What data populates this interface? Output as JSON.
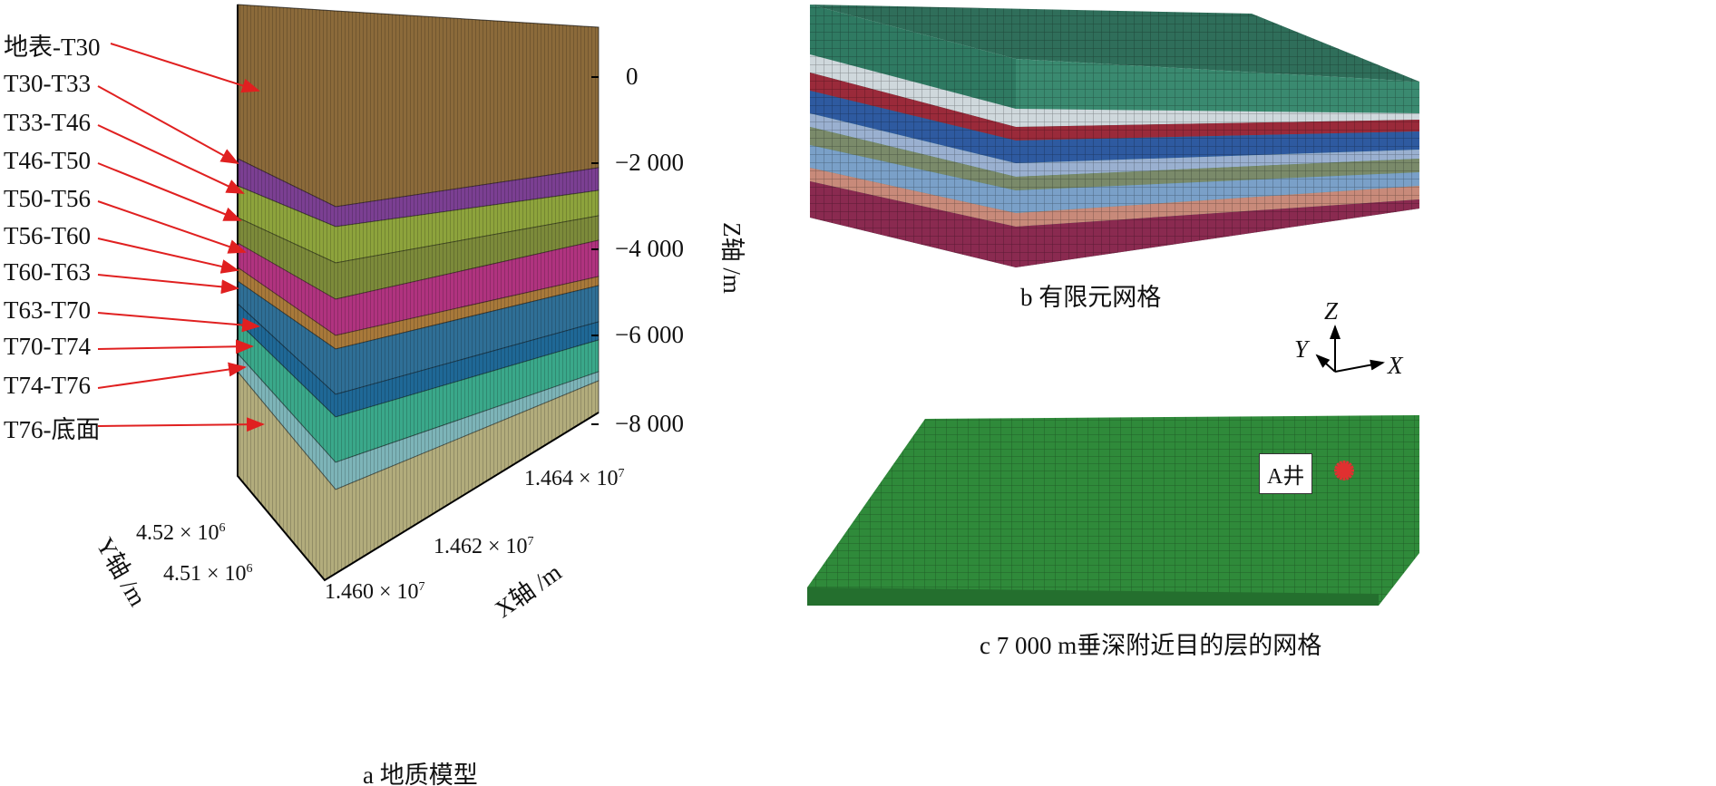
{
  "panel_a": {
    "caption": "a  地质模型",
    "layers": [
      {
        "label": "地表-T30",
        "color": "#8b6a3a"
      },
      {
        "label": "T30-T33",
        "color": "#7b3f92"
      },
      {
        "label": "T33-T46",
        "color": "#8da33c"
      },
      {
        "label": "T46-T50",
        "color": "#7c8a3a"
      },
      {
        "label": "T50-T56",
        "color": "#b0337f"
      },
      {
        "label": "T56-T60",
        "color": "#a8793a"
      },
      {
        "label": "T60-T63",
        "color": "#2f6f96"
      },
      {
        "label": "T63-T70",
        "color": "#1f6896"
      },
      {
        "label": "T70-T74",
        "color": "#3aa88a"
      },
      {
        "label": "T74-T76",
        "color": "#7db4b8"
      },
      {
        "label": "T76-底面",
        "color": "#b2ac7c"
      }
    ],
    "z_axis": {
      "label": "Z轴 /m",
      "ticks": [
        "0",
        "−2 000",
        "−4 000",
        "−6 000",
        "−8 000"
      ]
    },
    "y_axis": {
      "label": "Y轴 /m",
      "ticks": [
        {
          "base": "4.52 × 10",
          "exp": "6"
        },
        {
          "base": "4.51 × 10",
          "exp": "6"
        }
      ]
    },
    "x_axis": {
      "label": "X轴 /m",
      "ticks": [
        {
          "base": "1.460 × 10",
          "exp": "7"
        },
        {
          "base": "1.462 × 10",
          "exp": "7"
        },
        {
          "base": "1.464 × 10",
          "exp": "7"
        }
      ]
    },
    "arrow_color": "#e02020"
  },
  "panel_b": {
    "caption": "b  有限元网格"
  },
  "axes_triad": {
    "z": "Z",
    "y": "Y",
    "x": "X"
  },
  "panel_c": {
    "caption": "c  7 000 m垂深附近目的层的网格",
    "well_label": "A井",
    "well_color": "#e03030",
    "mesh_color": "#2f8a3a"
  }
}
